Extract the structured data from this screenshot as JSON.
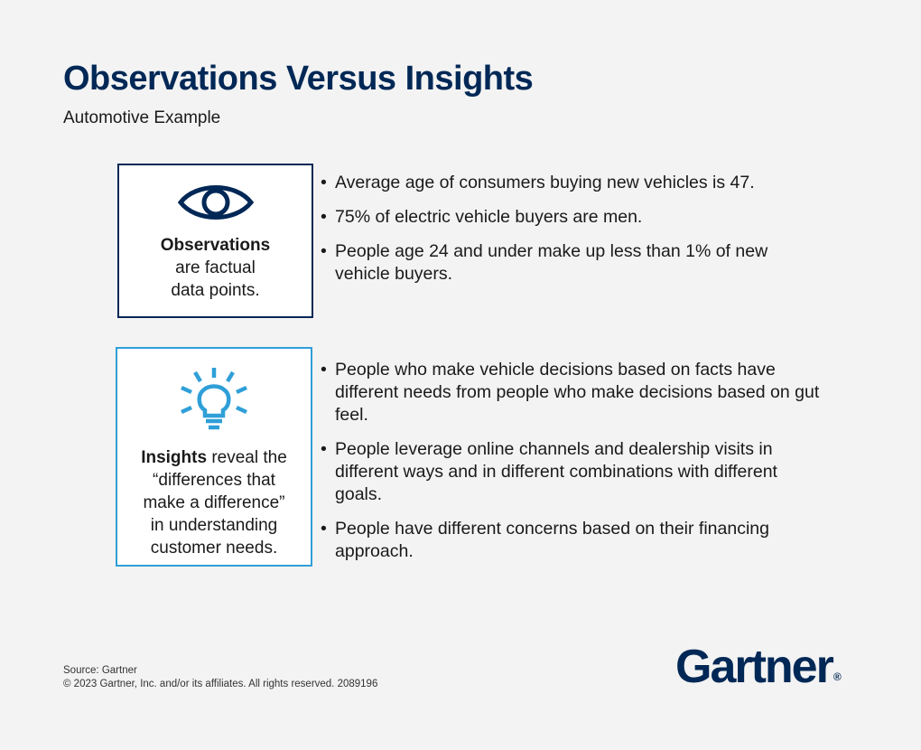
{
  "header": {
    "title": "Observations Versus Insights",
    "subtitle": "Automotive Example"
  },
  "observations": {
    "icon": "eye-icon",
    "bold_label": "Observations",
    "line1": "are factual",
    "line2": "data points.",
    "bullets": [
      "Average age of consumers buying new vehicles is 47.",
      "75% of electric vehicle buyers are men.",
      "People age 24 and under make up less than 1% of new vehicle buyers."
    ]
  },
  "insights": {
    "icon": "lightbulb-icon",
    "bold_label": "Insights",
    "line1_rest": " reveal the",
    "line2": "“differences that",
    "line3": "make a difference”",
    "line4": "in understanding",
    "line5": "customer needs.",
    "bullets": [
      "People who make vehicle decisions based on facts have different needs from people who make decisions based on gut feel.",
      "People leverage online channels and dealership visits in different ways and in different combinations with different goals.",
      "People have different concerns based on their financing approach."
    ]
  },
  "footer": {
    "source": "Source: Gartner",
    "copyright": "© 2023 Gartner, Inc. and/or its affiliates. All rights reserved. 2089196",
    "logo_text": "Gartner",
    "logo_mark": "®"
  },
  "colors": {
    "navy": "#002856",
    "light_blue": "#2f9fd8",
    "background": "#f3f3f3"
  }
}
